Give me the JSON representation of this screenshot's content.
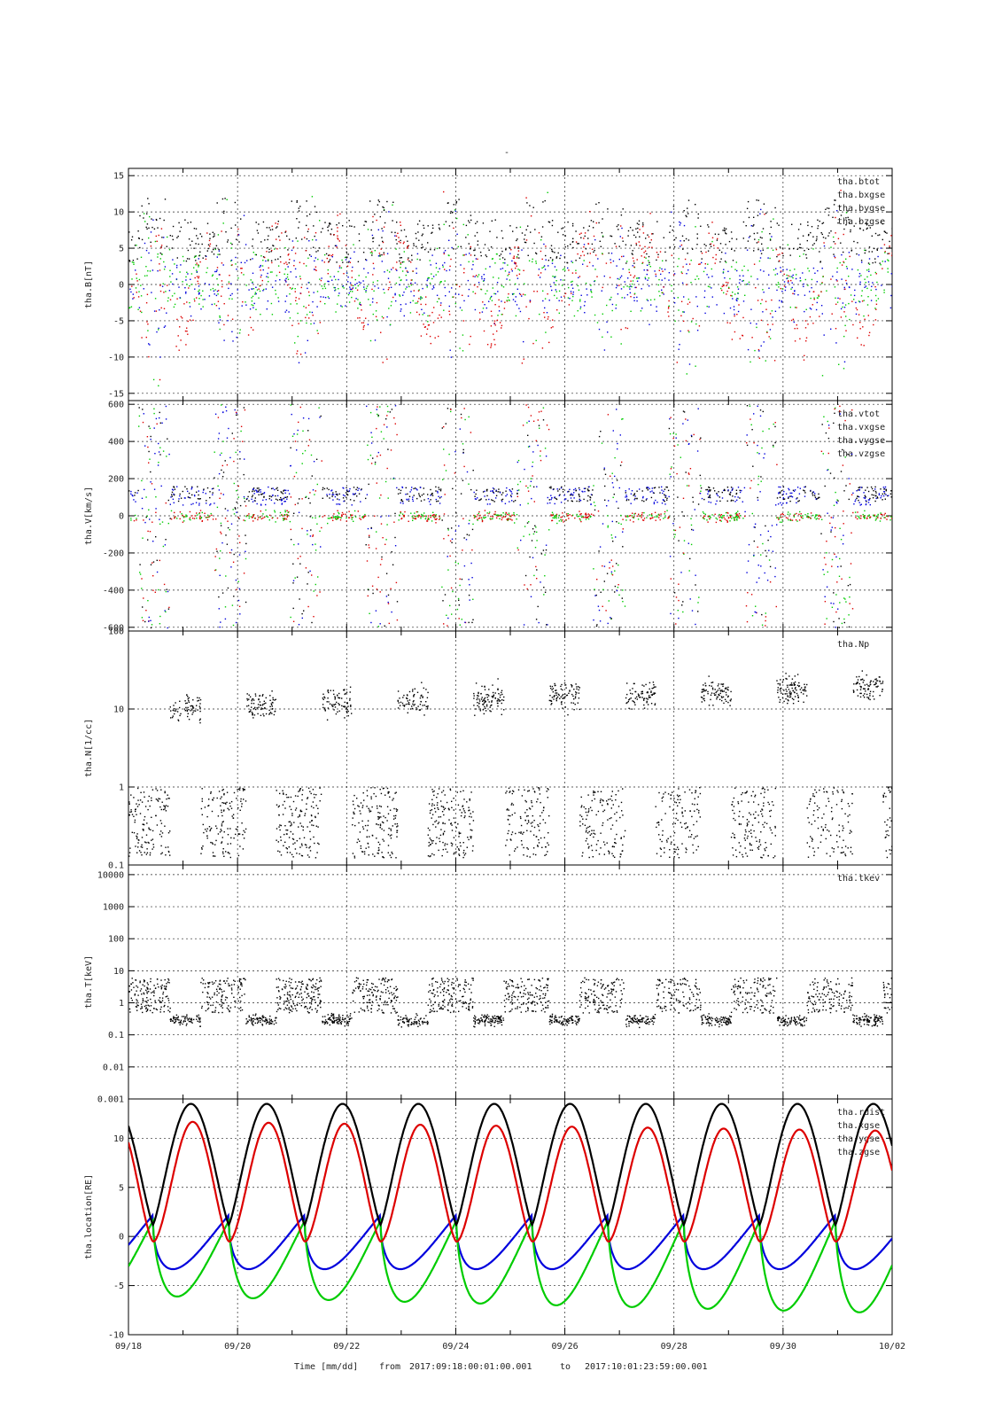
{
  "top_title": "-",
  "footer": {
    "xlabel": "Time [mm/dd]",
    "from_label": "from",
    "from_value": "2017:09:18:00:01:00.001",
    "to_label": "to",
    "to_value": "2017:10:01:23:59:00.001"
  },
  "colors": {
    "black": "#000000",
    "red": "#dd0000",
    "green": "#00cc00",
    "blue": "#0000dd"
  },
  "chart_data": [
    {
      "type": "scatter",
      "ylabel": "tha.B[nT]",
      "ylim": [
        -16,
        16
      ],
      "yscale": "linear",
      "yticks": [
        15,
        10,
        5,
        0,
        -5,
        -10,
        -15
      ],
      "xlim": [
        "09/18",
        "10/02"
      ],
      "xticks": [
        "09/18",
        "09/20",
        "09/22",
        "09/24",
        "09/26",
        "09/28",
        "09/30",
        "10/02"
      ],
      "grid": true,
      "legend_position": "top-right",
      "series": [
        {
          "name": "tha.btot",
          "color": "#000000"
        },
        {
          "name": "tha.bxgse",
          "color": "#dd0000"
        },
        {
          "name": "tha.bygse",
          "color": "#00cc00"
        },
        {
          "name": "tha.bzgse",
          "color": "#0000dd"
        }
      ]
    },
    {
      "type": "scatter",
      "ylabel": "tha.V[km/s]",
      "ylim": [
        -620,
        620
      ],
      "yscale": "linear",
      "yticks": [
        600,
        400,
        200,
        0,
        -200,
        -400,
        -600
      ],
      "xlim": [
        "09/18",
        "10/02"
      ],
      "grid": true,
      "legend_position": "top-right",
      "series": [
        {
          "name": "tha.vtot",
          "color": "#000000"
        },
        {
          "name": "tha.vxgse",
          "color": "#dd0000"
        },
        {
          "name": "tha.vygse",
          "color": "#00cc00"
        },
        {
          "name": "tha.vzgse",
          "color": "#0000dd"
        }
      ]
    },
    {
      "type": "scatter",
      "ylabel": "tha.N[1/cc]",
      "ylim": [
        0.1,
        100
      ],
      "yscale": "log",
      "yticks": [
        "100",
        "10",
        "1",
        "0.1"
      ],
      "xlim": [
        "09/18",
        "10/02"
      ],
      "grid": true,
      "legend_position": "top-right",
      "series": [
        {
          "name": "tha.Np",
          "color": "#000000"
        }
      ]
    },
    {
      "type": "scatter",
      "ylabel": "tha.T[keV]",
      "ylim": [
        0.001,
        20000
      ],
      "yscale": "log",
      "yticks": [
        "10000",
        "1000",
        "100",
        "10",
        "1",
        "0.1",
        "0.01",
        "0.001"
      ],
      "xlim": [
        "09/18",
        "10/02"
      ],
      "grid": true,
      "legend_position": "top-right",
      "series": [
        {
          "name": "tha.tkev",
          "color": "#000000"
        }
      ]
    },
    {
      "type": "line",
      "ylabel": "tha.location[RE]",
      "ylim": [
        -10,
        14
      ],
      "yscale": "linear",
      "yticks": [
        10,
        5,
        0,
        -5,
        -10
      ],
      "xlim": [
        "09/18",
        "10/02"
      ],
      "xticks": [
        "09/18",
        "09/20",
        "09/22",
        "09/24",
        "09/26",
        "09/28",
        "09/30",
        "10/02"
      ],
      "grid": true,
      "legend_position": "top-right",
      "series": [
        {
          "name": "tha.rdist",
          "color": "#000000"
        },
        {
          "name": "tha.xgse",
          "color": "#dd0000"
        },
        {
          "name": "tha.ygse",
          "color": "#00cc00"
        },
        {
          "name": "tha.zgse",
          "color": "#0000dd"
        }
      ]
    }
  ]
}
